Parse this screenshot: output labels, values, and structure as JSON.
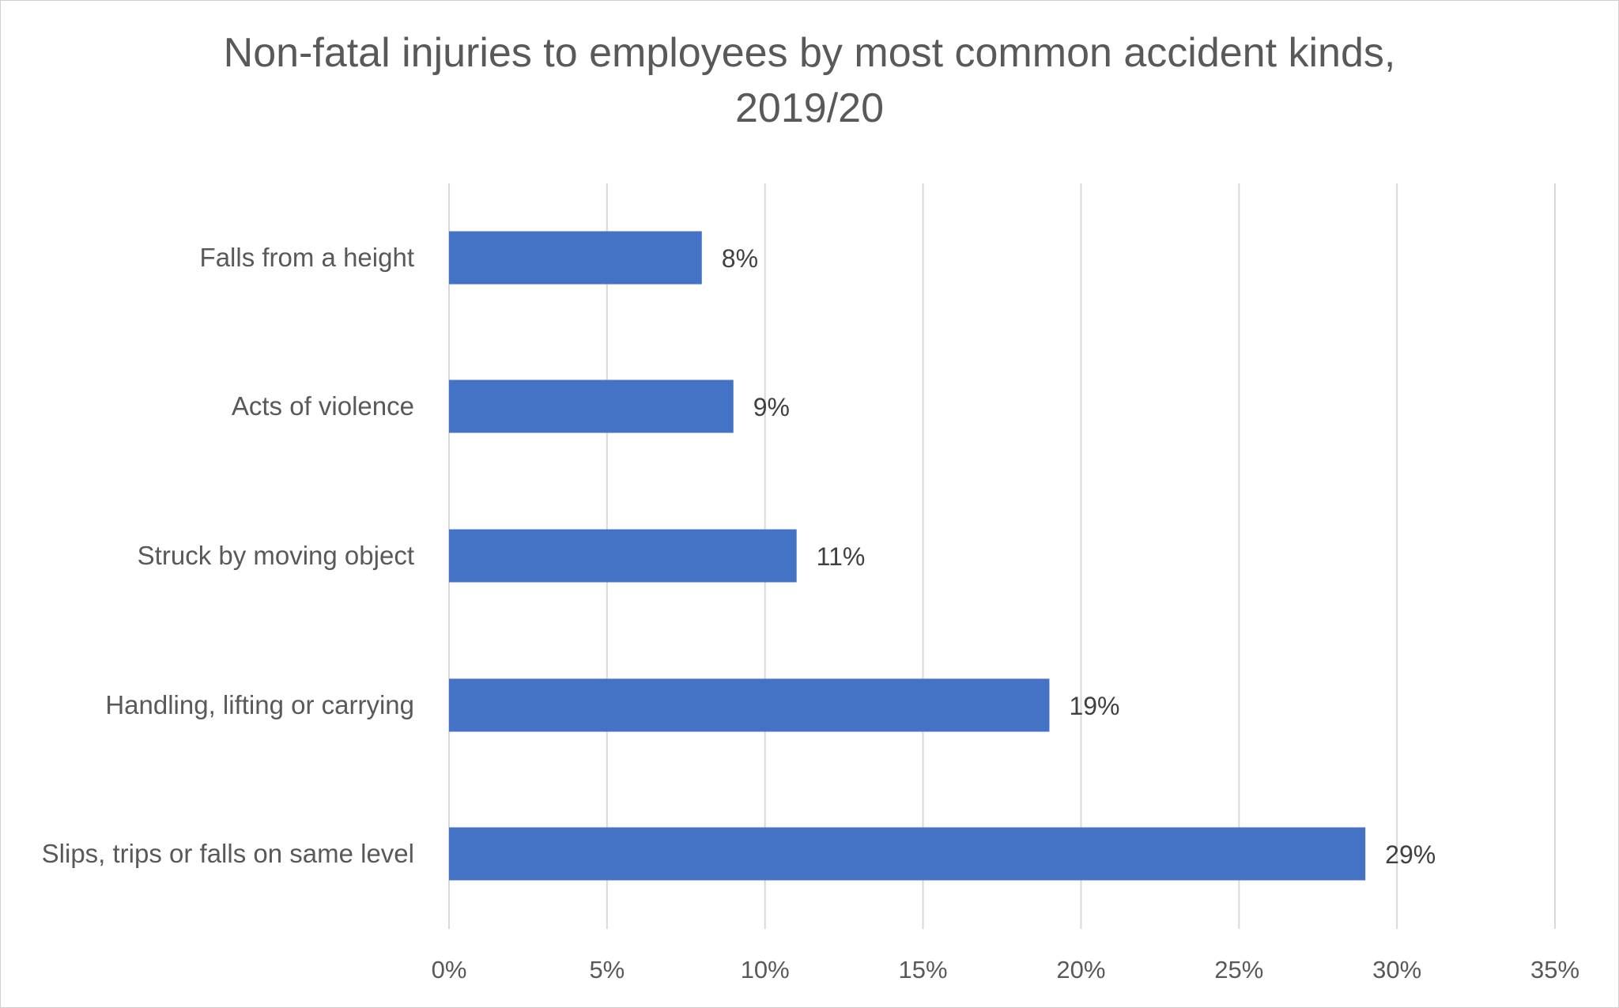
{
  "chart_data": {
    "type": "bar",
    "orientation": "horizontal",
    "title_lines": [
      "Non-fatal injuries to employees by most common accident kinds,",
      "2019/20"
    ],
    "categories": [
      "Falls from a height",
      "Acts of violence",
      "Struck by moving object",
      "Handling, lifting or carrying",
      "Slips, trips or falls on same level"
    ],
    "values": [
      8,
      9,
      11,
      19,
      29
    ],
    "data_labels": [
      "8%",
      "9%",
      "11%",
      "19%",
      "29%"
    ],
    "xlim": [
      0,
      35
    ],
    "x_ticks": [
      0,
      5,
      10,
      15,
      20,
      25,
      30,
      35
    ],
    "x_tick_labels": [
      "0%",
      "5%",
      "10%",
      "15%",
      "20%",
      "25%",
      "30%",
      "35%"
    ],
    "grid": "vertical",
    "legend": "none",
    "bar_color": "#4472C4",
    "grid_color": "#d9d9d9"
  }
}
